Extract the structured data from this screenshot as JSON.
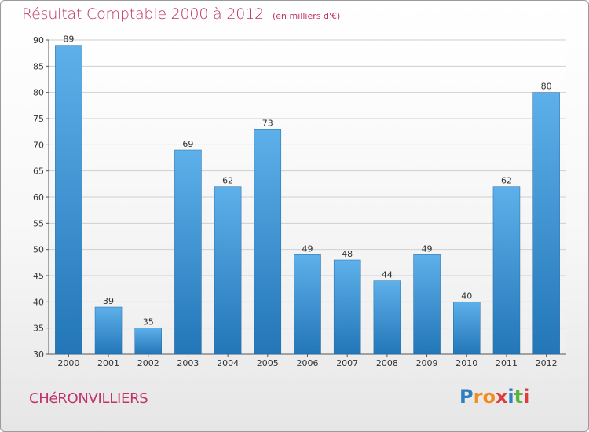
{
  "title": "Résultat Comptable 2000 à 2012",
  "title_unit": "(en milliers d'€)",
  "commune": "CHéRONVILLIERS",
  "logo": {
    "letters": [
      "P",
      "r",
      "o",
      "x",
      "i",
      "t",
      "i"
    ],
    "colors": [
      "#2d7fc1",
      "#f28c1e",
      "#f28c1e",
      "#e03b3b",
      "#2d7fc1",
      "#5bb33d",
      "#e03b3b"
    ]
  },
  "colors": {
    "accent": "#c0336a",
    "bar_top": "#5eb0ea",
    "bar_bottom": "#2376b7",
    "grid": "#cfcfcf",
    "axis": "#555555"
  },
  "chart_data": {
    "type": "bar",
    "categories": [
      "2000",
      "2001",
      "2002",
      "2003",
      "2004",
      "2005",
      "2006",
      "2007",
      "2008",
      "2009",
      "2010",
      "2011",
      "2012"
    ],
    "values": [
      89,
      39,
      35,
      69,
      62,
      73,
      49,
      48,
      44,
      49,
      40,
      62,
      80
    ],
    "ylim": [
      30,
      90
    ],
    "yticks": [
      30,
      35,
      40,
      45,
      50,
      55,
      60,
      65,
      70,
      75,
      80,
      85,
      90
    ],
    "grid": true,
    "legend": "none"
  }
}
